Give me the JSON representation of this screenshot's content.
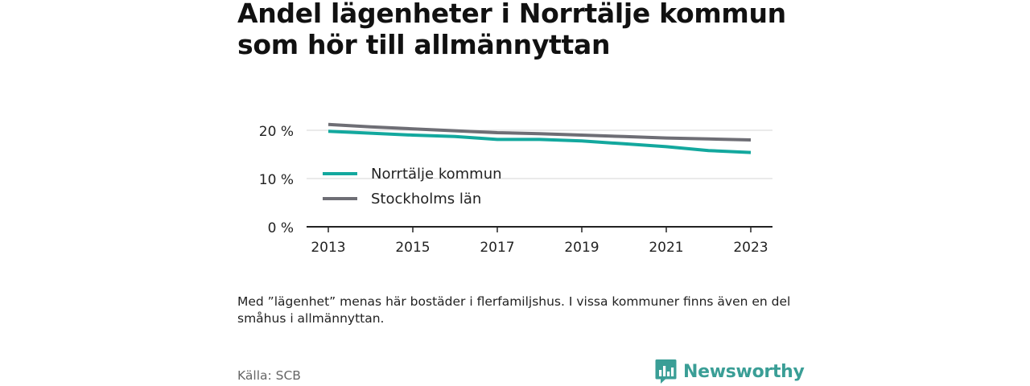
{
  "title": "Andel lägenheter i Norrtälje kommun som hör till allmännyttan",
  "note": "Med ”lägenhet” menas här bostäder i flerfamiljshus. I vissa kommuner finns även en del småhus i allmännyttan.",
  "source": "Källa: SCB",
  "brand": {
    "name": "Newsworthy",
    "icon": "bar-chart-logo-icon",
    "color": "#3a9e96"
  },
  "chart_data": {
    "type": "line",
    "x": [
      2013,
      2014,
      2015,
      2016,
      2017,
      2018,
      2019,
      2020,
      2021,
      2022,
      2023
    ],
    "x_ticks": [
      2013,
      2015,
      2017,
      2019,
      2021,
      2023
    ],
    "y_ticks": [
      0,
      10,
      20
    ],
    "y_tick_labels": [
      "0 %",
      "10 %",
      "20 %"
    ],
    "ylim": [
      0,
      20
    ],
    "grid": true,
    "legend_position": "left",
    "series": [
      {
        "name": "Norrtälje kommun",
        "color": "#13a89e",
        "values": [
          19.8,
          19.4,
          19.0,
          18.7,
          18.1,
          18.1,
          17.8,
          17.2,
          16.6,
          15.8,
          15.4
        ]
      },
      {
        "name": "Stockholms län",
        "color": "#6e6e75",
        "values": [
          21.2,
          20.7,
          20.3,
          19.9,
          19.5,
          19.3,
          19.0,
          18.7,
          18.4,
          18.2,
          18.0
        ]
      }
    ]
  }
}
